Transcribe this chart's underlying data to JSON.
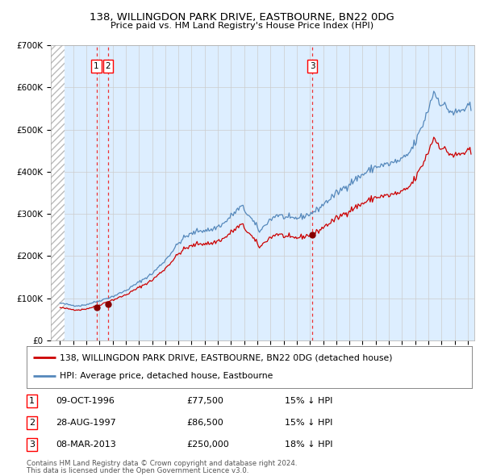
{
  "title": "138, WILLINGDON PARK DRIVE, EASTBOURNE, BN22 0DG",
  "subtitle": "Price paid vs. HM Land Registry's House Price Index (HPI)",
  "ylim": [
    0,
    700000
  ],
  "yticks": [
    0,
    100000,
    200000,
    300000,
    400000,
    500000,
    600000,
    700000
  ],
  "ytick_labels": [
    "£0",
    "£100K",
    "£200K",
    "£300K",
    "£400K",
    "£500K",
    "£600K",
    "£700K"
  ],
  "sales": [
    {
      "t": 1996.77,
      "price": 77500,
      "label": "1"
    },
    {
      "t": 1997.65,
      "price": 86500,
      "label": "2"
    },
    {
      "t": 2013.18,
      "price": 250000,
      "label": "3"
    }
  ],
  "legend_property": "138, WILLINGDON PARK DRIVE, EASTBOURNE, BN22 0DG (detached house)",
  "legend_hpi": "HPI: Average price, detached house, Eastbourne",
  "table_rows": [
    {
      "num": "1",
      "date": "09-OCT-1996",
      "price": "£77,500",
      "pct": "15% ↓ HPI"
    },
    {
      "num": "2",
      "date": "28-AUG-1997",
      "price": "£86,500",
      "pct": "15% ↓ HPI"
    },
    {
      "num": "3",
      "date": "08-MAR-2013",
      "price": "£250,000",
      "pct": "18% ↓ HPI"
    }
  ],
  "footer": "Contains HM Land Registry data © Crown copyright and database right 2024.\nThis data is licensed under the Open Government Licence v3.0.",
  "property_color": "#cc0000",
  "hpi_color": "#5588bb",
  "hpi_fill_color": "#ddeeff",
  "grid_color": "#cccccc",
  "dashed_line_color": "#ee3333",
  "hatch_color": "#bbbbbb"
}
